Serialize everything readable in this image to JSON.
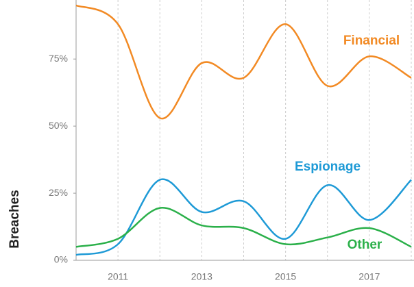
{
  "chart_data": {
    "type": "line",
    "y_axis_label": "Breaches",
    "x": [
      2010,
      2011,
      2012,
      2013,
      2014,
      2015,
      2016,
      2017,
      2018
    ],
    "series": [
      {
        "name": "Financial",
        "color": "#f28a24",
        "values": [
          95,
          88,
          53,
          73.5,
          68,
          88,
          65,
          76,
          68
        ]
      },
      {
        "name": "Espionage",
        "color": "#1e9ad6",
        "values": [
          2,
          6,
          30,
          18,
          22,
          8,
          28,
          15,
          30
        ]
      },
      {
        "name": "Other",
        "color": "#2bb04a",
        "values": [
          5,
          8,
          19.5,
          13,
          12,
          6,
          8.5,
          12,
          5
        ]
      }
    ],
    "xlim": [
      2010,
      2018
    ],
    "xticks": [
      2011,
      2013,
      2015,
      2017
    ],
    "x_minor_ticks": [
      2012,
      2014,
      2016,
      2018
    ],
    "ylim": [
      0,
      97
    ],
    "yticks": [
      {
        "value": 0,
        "label": "0%"
      },
      {
        "value": 25,
        "label": "25%"
      },
      {
        "value": 50,
        "label": "50%"
      },
      {
        "value": 75,
        "label": "75%"
      }
    ],
    "grid": true
  }
}
